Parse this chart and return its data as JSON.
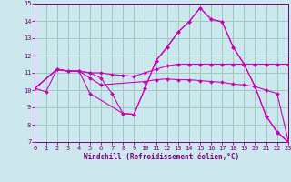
{
  "xlabel": "Windchill (Refroidissement éolien,°C)",
  "background_color": "#cce8ee",
  "grid_color": "#99ccbb",
  "line_color": "#cc00bb",
  "xlim": [
    0,
    23
  ],
  "ylim": [
    7,
    15
  ],
  "ytick_vals": [
    7,
    8,
    9,
    10,
    11,
    12,
    13,
    14,
    15
  ],
  "xtick_vals": [
    0,
    1,
    2,
    3,
    4,
    5,
    6,
    7,
    8,
    9,
    10,
    11,
    12,
    13,
    14,
    15,
    16,
    17,
    18,
    19,
    20,
    21,
    22,
    23
  ],
  "lines": [
    {
      "x": [
        0,
        1,
        2,
        3,
        4,
        5,
        6,
        7,
        8,
        9,
        10,
        11,
        12,
        13,
        14,
        15,
        16,
        17,
        18,
        19,
        20,
        21,
        22,
        23
      ],
      "y": [
        10.1,
        9.9,
        11.2,
        11.1,
        11.1,
        11.0,
        10.7,
        9.8,
        8.65,
        8.6,
        10.1,
        11.7,
        12.5,
        13.35,
        13.95,
        14.75,
        14.1,
        13.95,
        12.5,
        11.5,
        10.2,
        8.5,
        7.6,
        7.0
      ]
    },
    {
      "x": [
        0,
        2,
        3,
        4,
        5,
        6,
        7,
        8,
        9,
        10,
        11,
        12,
        13,
        14,
        15,
        16,
        17,
        18,
        19,
        20,
        21,
        22,
        23
      ],
      "y": [
        10.1,
        11.2,
        11.1,
        11.1,
        11.0,
        11.0,
        10.9,
        10.85,
        10.8,
        11.0,
        11.2,
        11.4,
        11.5,
        11.5,
        11.5,
        11.5,
        11.5,
        11.5,
        11.5,
        11.5,
        11.5,
        11.5,
        11.5
      ]
    },
    {
      "x": [
        0,
        2,
        3,
        4,
        5,
        6,
        10,
        11,
        12,
        13,
        14,
        15,
        16,
        17,
        18,
        19,
        20,
        21,
        22,
        23
      ],
      "y": [
        10.1,
        11.2,
        11.1,
        11.1,
        10.7,
        10.3,
        10.5,
        10.6,
        10.65,
        10.6,
        10.6,
        10.55,
        10.5,
        10.45,
        10.35,
        10.3,
        10.2,
        10.0,
        9.8,
        7.1
      ]
    },
    {
      "x": [
        0,
        2,
        3,
        4,
        5,
        8,
        9,
        10,
        11,
        12,
        13,
        14,
        15,
        16,
        17,
        18,
        19,
        20,
        21,
        22,
        23
      ],
      "y": [
        10.1,
        11.2,
        11.1,
        11.1,
        9.8,
        8.65,
        8.6,
        10.1,
        11.7,
        12.45,
        13.35,
        13.95,
        14.75,
        14.1,
        13.95,
        12.5,
        11.5,
        10.2,
        8.5,
        7.55,
        7.0
      ]
    }
  ],
  "tick_color": "#770077",
  "xlabel_fontsize": 5.5,
  "tick_fontsize": 5.0
}
